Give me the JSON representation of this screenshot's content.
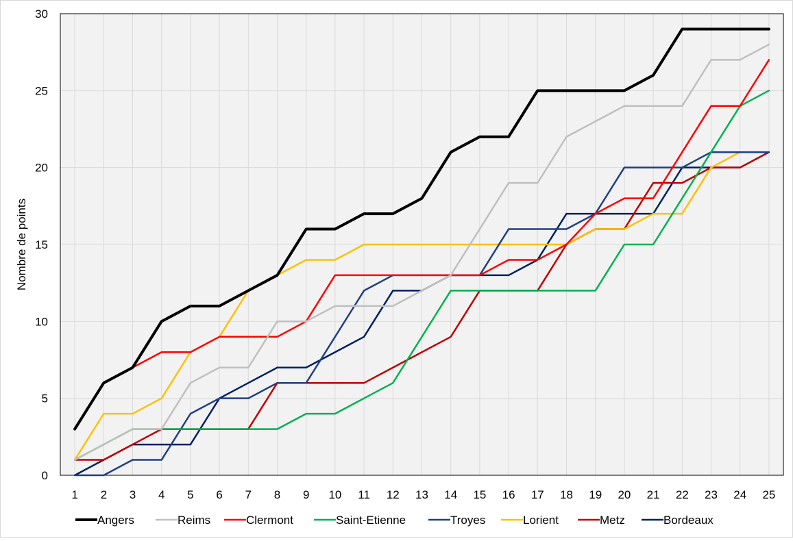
{
  "chart_data": {
    "type": "line",
    "title": "",
    "xlabel": "",
    "ylabel": "Nombre de points",
    "xlim": [
      1,
      25
    ],
    "ylim": [
      0,
      30
    ],
    "yticks": [
      0,
      5,
      10,
      15,
      20,
      25,
      30
    ],
    "x": [
      1,
      2,
      3,
      4,
      5,
      6,
      7,
      8,
      9,
      10,
      11,
      12,
      13,
      14,
      15,
      16,
      17,
      18,
      19,
      20,
      21,
      22,
      23,
      24,
      25
    ],
    "grid": true,
    "legend_position": "bottom",
    "series": [
      {
        "name": "Angers",
        "color": "#000000",
        "width": 4,
        "values": [
          3,
          6,
          7,
          10,
          11,
          11,
          12,
          13,
          16,
          16,
          17,
          17,
          18,
          21,
          22,
          22,
          25,
          25,
          25,
          25,
          26,
          29,
          29,
          29,
          29
        ]
      },
      {
        "name": "Reims",
        "color": "#bfbfbf",
        "width": 2.5,
        "values": [
          1,
          2,
          3,
          3,
          6,
          7,
          7,
          10,
          10,
          11,
          11,
          11,
          12,
          13,
          16,
          19,
          19,
          22,
          23,
          24,
          24,
          24,
          27,
          27,
          28
        ]
      },
      {
        "name": "Clermont",
        "color": "#ff0000",
        "width": 2.5,
        "values": [
          3,
          6,
          7,
          8,
          8,
          9,
          9,
          9,
          10,
          13,
          13,
          13,
          13,
          13,
          13,
          14,
          14,
          15,
          17,
          18,
          18,
          21,
          24,
          24,
          27
        ]
      },
      {
        "name": "Saint-Etienne",
        "color": "#00b050",
        "width": 2.5,
        "values": [
          1,
          2,
          3,
          3,
          3,
          3,
          3,
          3,
          4,
          4,
          5,
          6,
          9,
          12,
          12,
          12,
          12,
          12,
          12,
          15,
          15,
          18,
          21,
          24,
          25
        ]
      },
      {
        "name": "Troyes",
        "color": "#1f3f7f",
        "width": 2.5,
        "values": [
          0,
          0,
          1,
          1,
          4,
          5,
          5,
          6,
          6,
          9,
          12,
          13,
          13,
          13,
          13,
          16,
          16,
          16,
          17,
          20,
          20,
          20,
          21,
          21,
          21
        ]
      },
      {
        "name": "Lorient",
        "color": "#ffc000",
        "width": 2.5,
        "values": [
          1,
          4,
          4,
          5,
          8,
          9,
          12,
          13,
          14,
          14,
          15,
          15,
          15,
          15,
          15,
          15,
          15,
          15,
          16,
          16,
          17,
          17,
          20,
          21,
          21
        ]
      },
      {
        "name": "Metz",
        "color": "#c00000",
        "width": 2.5,
        "values": [
          1,
          1,
          2,
          3,
          3,
          3,
          3,
          6,
          6,
          6,
          6,
          7,
          8,
          9,
          12,
          12,
          12,
          15,
          16,
          16,
          19,
          19,
          20,
          20,
          21
        ]
      },
      {
        "name": "Bordeaux",
        "color": "#002060",
        "width": 2.5,
        "values": [
          0,
          1,
          2,
          2,
          2,
          5,
          6,
          7,
          7,
          8,
          9,
          12,
          12,
          13,
          13,
          13,
          14,
          17,
          17,
          17,
          17,
          20,
          20,
          20,
          21
        ]
      }
    ]
  }
}
